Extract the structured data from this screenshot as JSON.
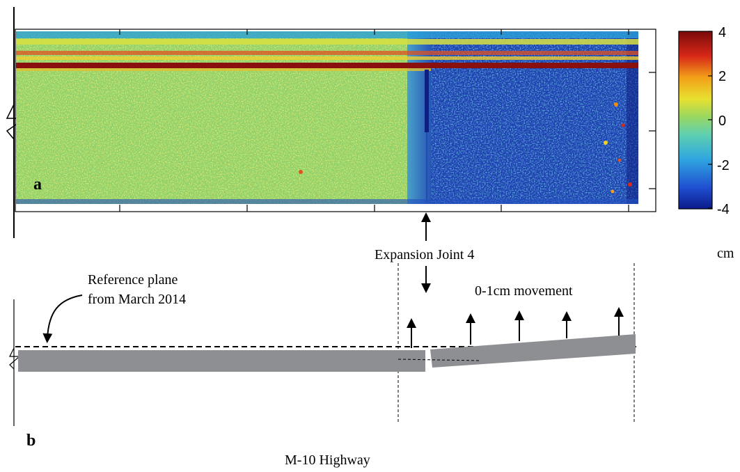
{
  "panel_a": {
    "label": "a",
    "colorbar": {
      "ticks": [
        "4",
        "2",
        "0",
        "-2",
        "-4"
      ],
      "unit": "cm",
      "colors": [
        "#0b1a8a",
        "#1f4fd0",
        "#2fa6e0",
        "#5fd0b0",
        "#c8e040",
        "#f2d020",
        "#f08a10",
        "#d82818",
        "#7a0a0a"
      ]
    },
    "colors": {
      "left_region": "#8fd06a",
      "right_region": "#1d3fb0",
      "deep_blue": "#0e1f84",
      "stripe_red": "#8a0f0f",
      "yellow_speckle": "#e8e040"
    }
  },
  "annotation": {
    "joint_label": "Expansion Joint 4"
  },
  "panel_b": {
    "label": "b",
    "reference_text_line1": "Reference plane",
    "reference_text_line2": "from March 2014",
    "movement_text": "0-1cm movement",
    "slab_color": "#8e8f92"
  },
  "caption": "M-10 Highway"
}
